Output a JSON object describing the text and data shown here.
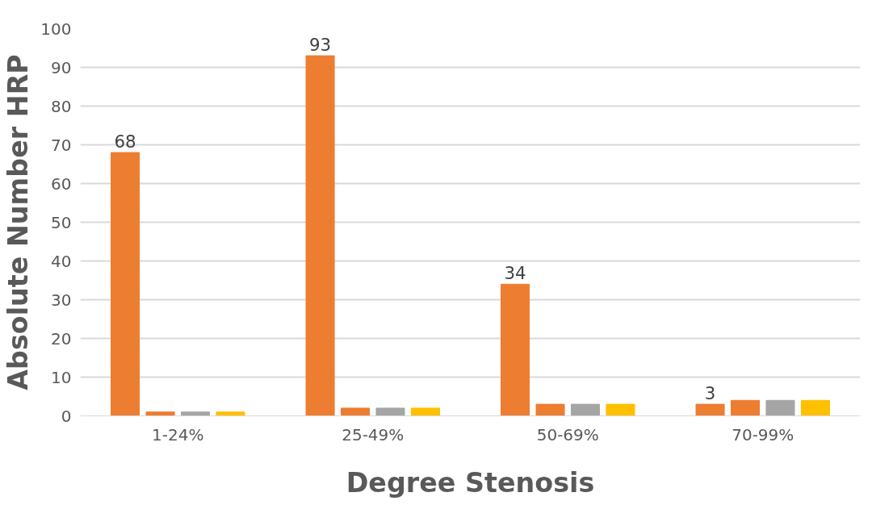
{
  "chart_data": {
    "type": "bar",
    "xlabel": "Degree Stenosis",
    "ylabel": "Absolute Number HRP",
    "categories": [
      "1-24%",
      "25-49%",
      "50-69%",
      "70-99%"
    ],
    "series": [
      {
        "color": "#ed7d31",
        "values": [
          68,
          93,
          34,
          3
        ],
        "value_labels": [
          "68",
          "93",
          "34",
          "3"
        ]
      },
      {
        "color": "#ed7d31",
        "values": [
          1,
          2,
          3,
          4
        ]
      },
      {
        "color": "#a5a5a5",
        "values": [
          1,
          2,
          3,
          4
        ]
      },
      {
        "color": "#ffc000",
        "values": [
          1,
          2,
          3,
          4
        ]
      }
    ],
    "ylim": [
      0,
      100
    ],
    "yticks": [
      0,
      10,
      20,
      30,
      40,
      50,
      60,
      70,
      80,
      90,
      100
    ],
    "grid": "y"
  }
}
